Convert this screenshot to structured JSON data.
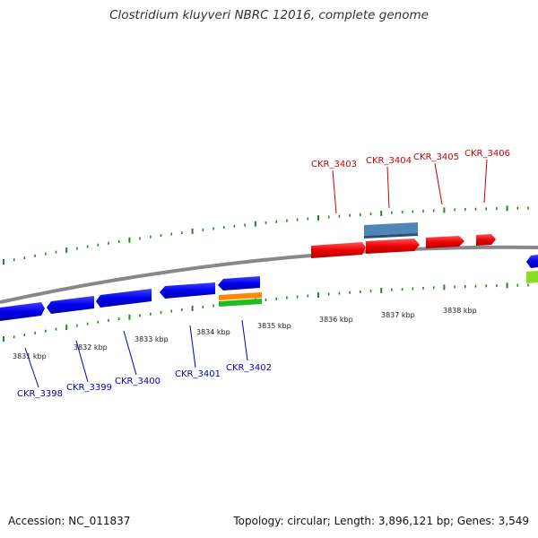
{
  "title": "Clostridium kluyveri NBRC 12016, complete genome",
  "footer": {
    "accession": "Accession: NC_011837",
    "topology": "Topology: circular; Length: 3,896,121 bp; Genes: 3,549"
  },
  "colors": {
    "forward_gene": "#ee0000",
    "reverse_gene": "#0000ee",
    "rrna_blue": "#4f86b8",
    "orange": "#ff8800",
    "green": "#22bb22",
    "light_green": "#88dd22",
    "backbone": "#888888",
    "ticks": "#228822",
    "forward_label": "#cc0000",
    "reverse_label": "#0000bb"
  },
  "scale_labels": [
    "3831 kbp",
    "3832 kbp",
    "3833 kbp",
    "3834 kbp",
    "3835 kbp",
    "3836 kbp",
    "3837 kbp",
    "3838 kbp"
  ],
  "forward_labels": [
    "CKR_3403",
    "CKR_3404",
    "CKR_3405",
    "CKR_3406"
  ],
  "reverse_labels": [
    "CKR_3398",
    "CKR_3399",
    "CKR_3400",
    "CKR_3401",
    "CKR_3402"
  ]
}
